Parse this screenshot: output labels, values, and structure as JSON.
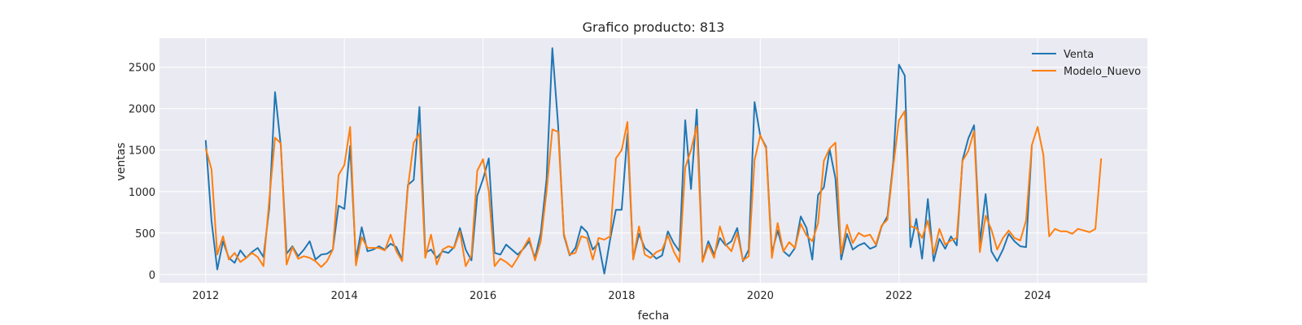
{
  "chart_data": {
    "type": "line",
    "title": "Grafico producto: 813",
    "xlabel": "fecha",
    "ylabel": "ventas",
    "x_start": "2012-01",
    "x_end": "2024-12",
    "xlim": [
      "2011-05",
      "2025-08"
    ],
    "ylim": [
      -100,
      2850
    ],
    "x_ticks": [
      {
        "label": "2012",
        "value": "2012-01"
      },
      {
        "label": "2014",
        "value": "2014-01"
      },
      {
        "label": "2016",
        "value": "2016-01"
      },
      {
        "label": "2018",
        "value": "2018-01"
      },
      {
        "label": "2020",
        "value": "2020-01"
      },
      {
        "label": "2022",
        "value": "2022-01"
      },
      {
        "label": "2024",
        "value": "2024-01"
      }
    ],
    "y_ticks": [
      0,
      500,
      1000,
      1500,
      2000,
      2500
    ],
    "grid": true,
    "legend_position": "top-right",
    "series": [
      {
        "name": "Venta",
        "color": "#1f77b4",
        "values": [
          1620,
          650,
          60,
          400,
          200,
          140,
          290,
          200,
          270,
          320,
          210,
          800,
          2200,
          1550,
          250,
          340,
          220,
          300,
          400,
          180,
          240,
          250,
          300,
          830,
          790,
          1550,
          170,
          570,
          280,
          300,
          340,
          300,
          370,
          330,
          180,
          1080,
          1140,
          2020,
          260,
          300,
          200,
          280,
          260,
          330,
          560,
          300,
          170,
          950,
          1150,
          1400,
          260,
          240,
          360,
          300,
          240,
          310,
          400,
          200,
          500,
          1150,
          2730,
          1800,
          470,
          230,
          320,
          580,
          510,
          300,
          380,
          10,
          420,
          780,
          780,
          1700,
          190,
          490,
          320,
          260,
          190,
          230,
          520,
          380,
          280,
          1860,
          1030,
          1990,
          160,
          400,
          240,
          440,
          350,
          400,
          560,
          160,
          300,
          2080,
          1670,
          1540,
          260,
          530,
          280,
          220,
          320,
          700,
          560,
          180,
          960,
          1050,
          1510,
          1160,
          180,
          490,
          300,
          350,
          380,
          310,
          340,
          580,
          700,
          1350,
          2530,
          2400,
          330,
          670,
          190,
          910,
          160,
          430,
          310,
          460,
          350,
          1380,
          1640,
          1800,
          380,
          970,
          280,
          160,
          300,
          490,
          400,
          340,
          330,
          1560
        ]
      },
      {
        "name": "Modelo_Nuevo",
        "color": "#ff7f0e",
        "values": [
          1520,
          1270,
          240,
          460,
          180,
          260,
          150,
          200,
          260,
          210,
          100,
          900,
          1650,
          1580,
          120,
          330,
          190,
          220,
          200,
          160,
          90,
          160,
          300,
          1200,
          1320,
          1780,
          110,
          450,
          320,
          320,
          320,
          290,
          480,
          280,
          160,
          1050,
          1590,
          1700,
          200,
          480,
          120,
          300,
          340,
          320,
          520,
          100,
          230,
          1250,
          1390,
          1000,
          100,
          190,
          150,
          90,
          200,
          320,
          440,
          170,
          400,
          1000,
          1750,
          1720,
          490,
          240,
          260,
          460,
          440,
          180,
          440,
          420,
          460,
          1400,
          1500,
          1840,
          180,
          580,
          240,
          200,
          270,
          300,
          470,
          280,
          150,
          1290,
          1500,
          1790,
          150,
          360,
          200,
          580,
          360,
          280,
          500,
          170,
          220,
          1380,
          1680,
          1520,
          200,
          620,
          280,
          390,
          320,
          610,
          470,
          400,
          620,
          1370,
          1520,
          1590,
          250,
          600,
          380,
          500,
          460,
          480,
          360,
          590,
          660,
          1300,
          1860,
          1970,
          580,
          560,
          440,
          650,
          250,
          550,
          360,
          410,
          440,
          1370,
          1490,
          1730,
          270,
          710,
          540,
          300,
          440,
          530,
          440,
          410,
          650,
          1560,
          1780,
          1440,
          460,
          550,
          520,
          520,
          490,
          550,
          530,
          510,
          550,
          1400
        ]
      }
    ]
  }
}
